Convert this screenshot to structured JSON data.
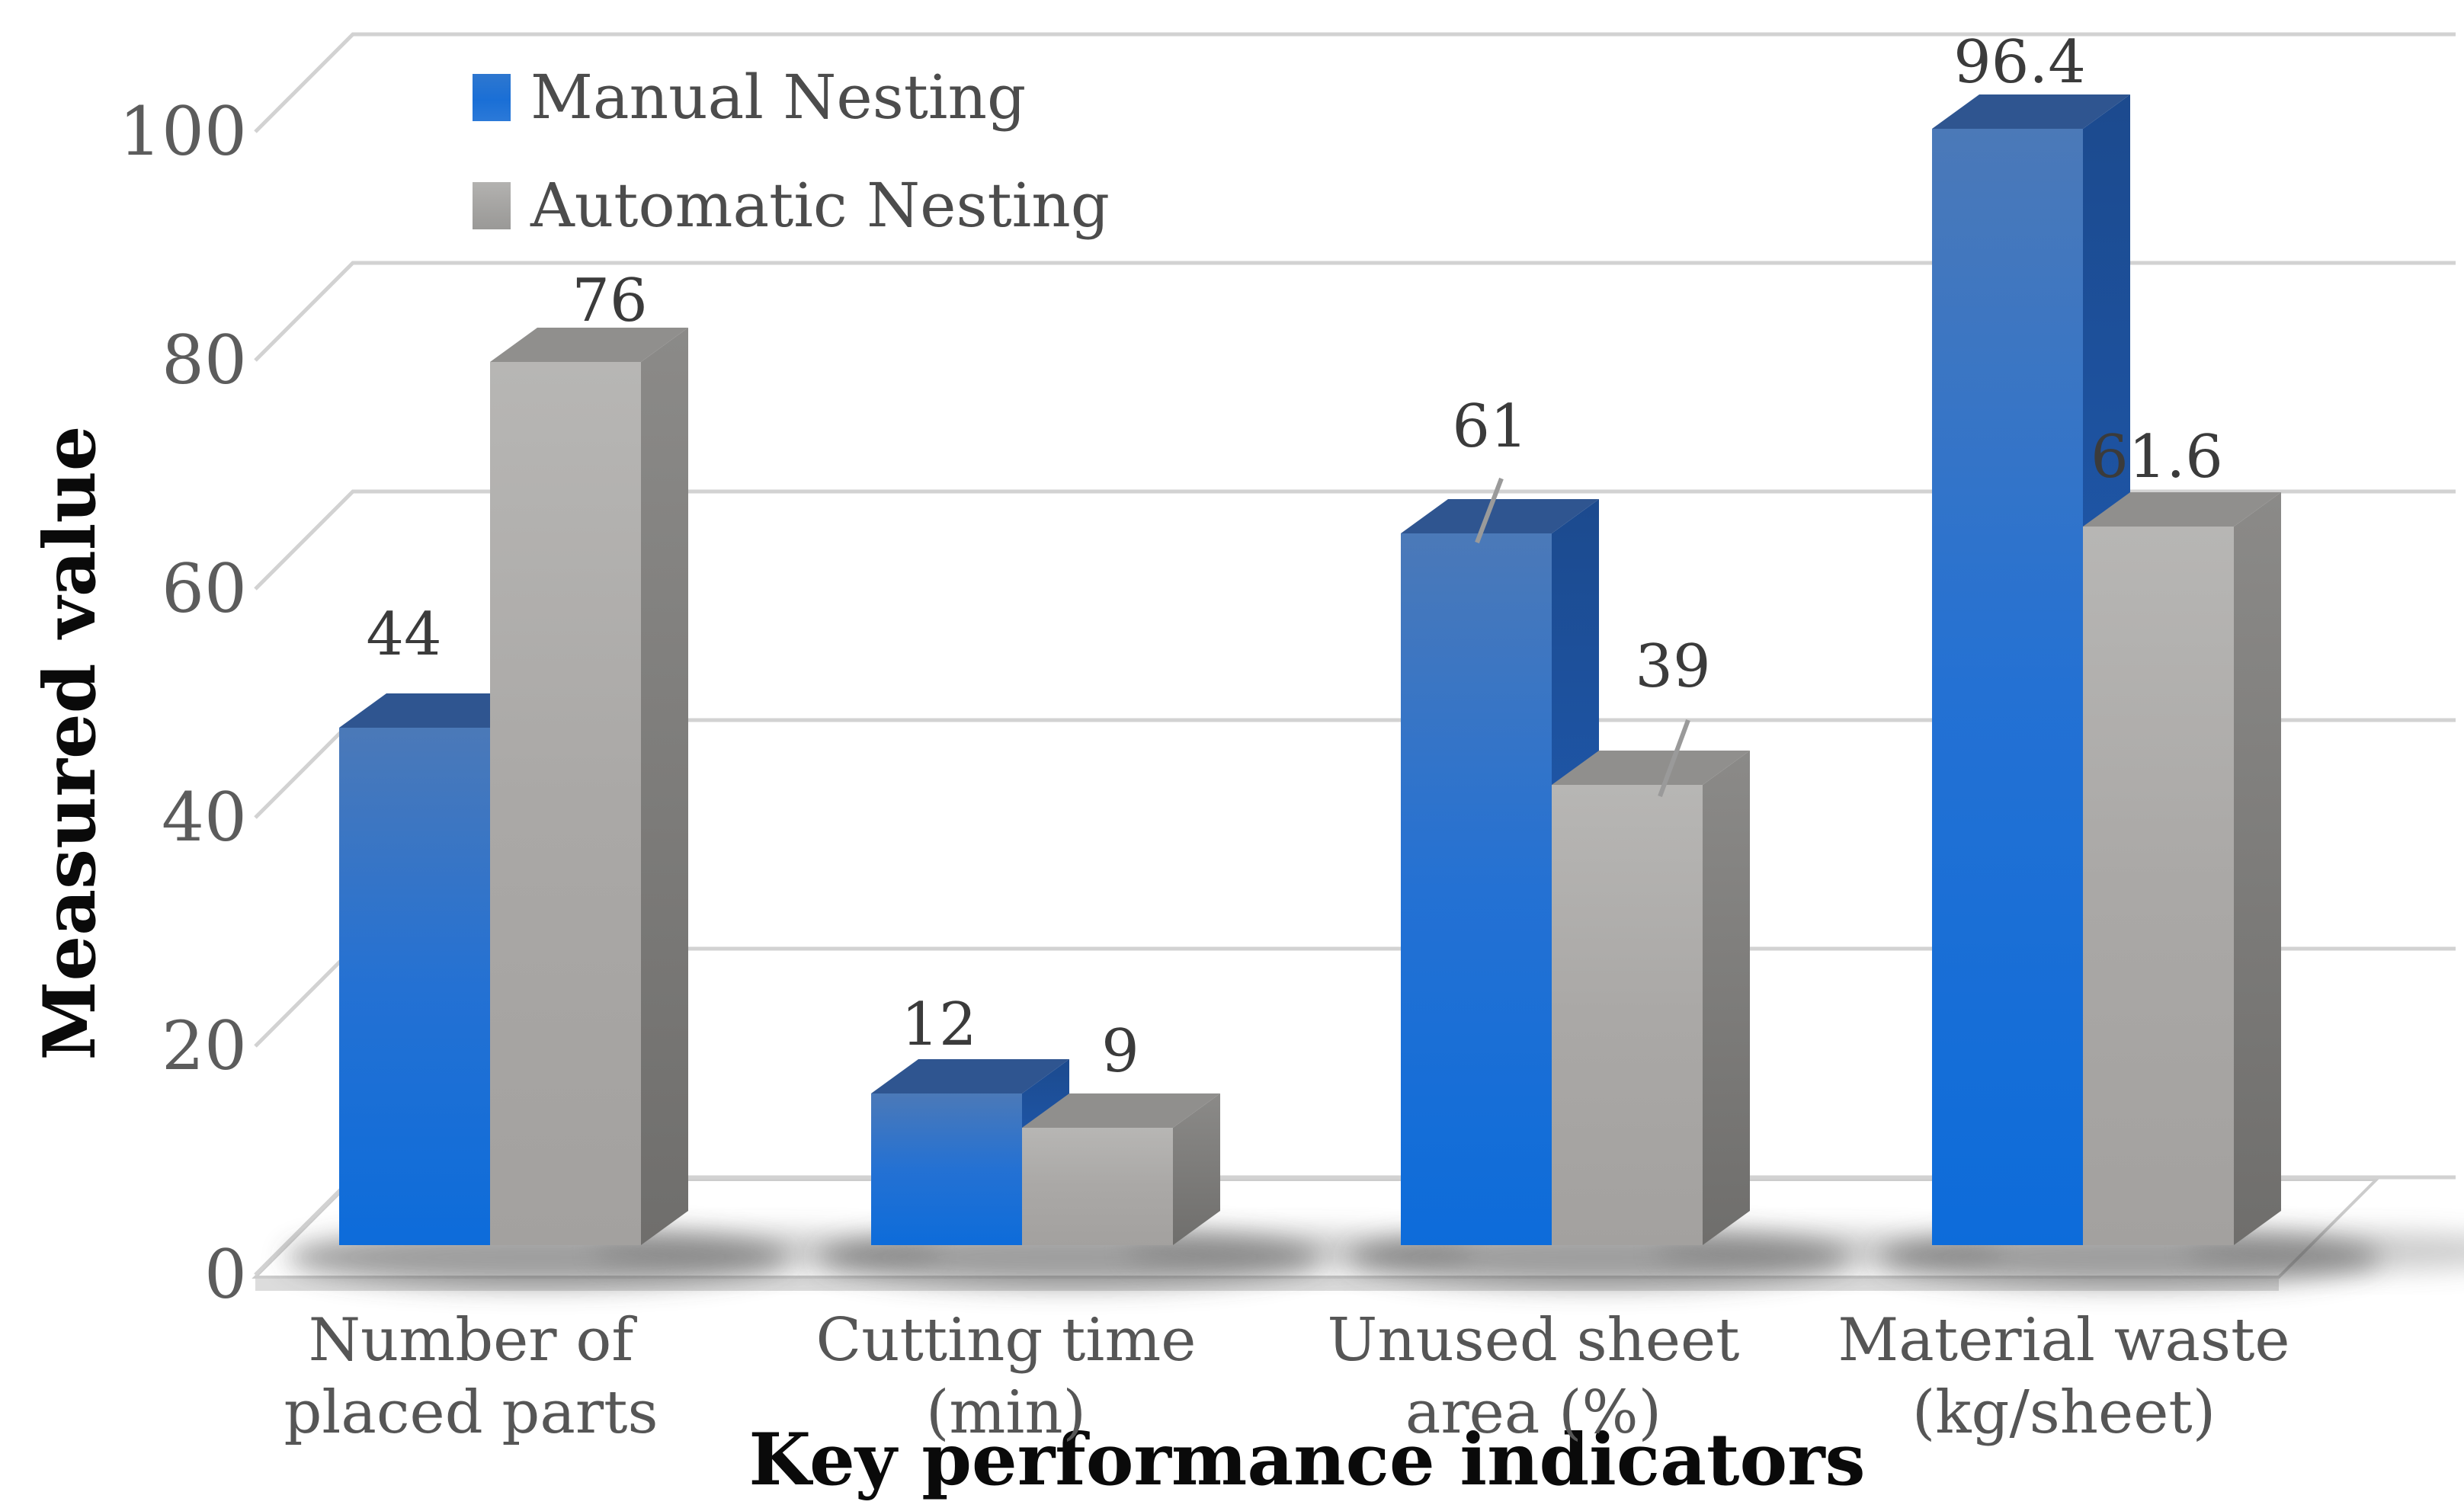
{
  "chart_data": {
    "type": "bar",
    "style": "3d-clustered-column",
    "title": "",
    "xlabel": "Key performance indicators",
    "ylabel": "Measured value",
    "ylim": [
      0,
      100
    ],
    "yticks": [
      0,
      20,
      40,
      60,
      80,
      100
    ],
    "grid": true,
    "legend_position": "top-left",
    "categories": [
      "Number of\nplaced parts",
      "Cutting time\n(min)",
      "Unused sheet\narea (%)",
      "Material waste\n(kg/sheet)"
    ],
    "series": [
      {
        "name": "Manual Nesting",
        "color": "#1b6ed6",
        "values": [
          44,
          12,
          61,
          96.4
        ]
      },
      {
        "name": "Automatic Nesting",
        "color": "#a9a8a6",
        "values": [
          76,
          9,
          39,
          61.6
        ]
      }
    ]
  }
}
